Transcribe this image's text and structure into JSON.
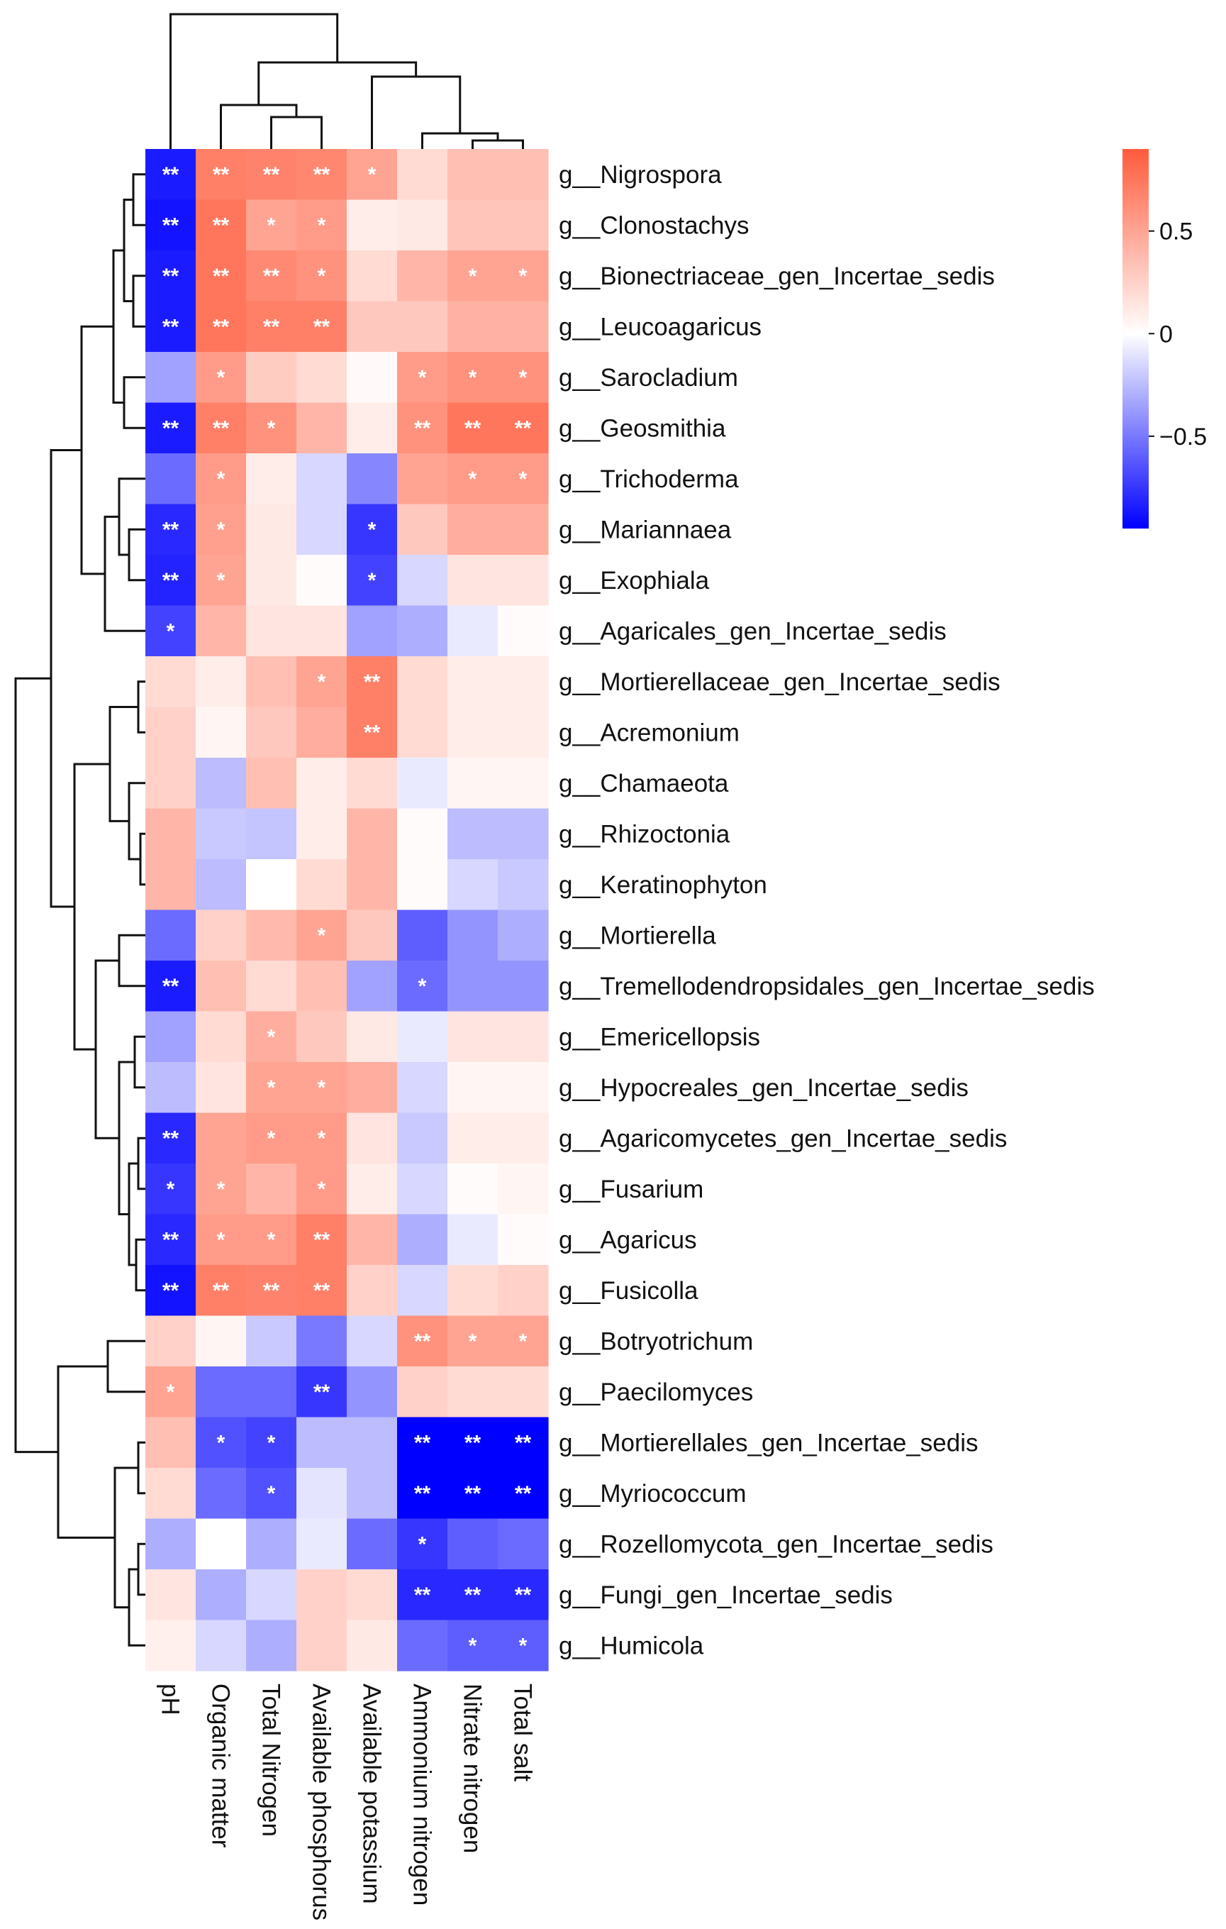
{
  "chart_data": {
    "type": "heatmap",
    "title": "",
    "columns": [
      "pH",
      "Organic matter",
      "Total Nitrogen",
      "Available phosphorus",
      "Available potassium",
      "Ammonium nitrogen",
      "Nitrate nitrogen",
      "Total salt"
    ],
    "rows": [
      "g__Nigrospora",
      "g__Clonostachys",
      "g__Bionectriaceae_gen_Incertae_sedis",
      "g__Leucoagaricus",
      "g__Sarocladium",
      "g__Geosmithia",
      "g__Trichoderma",
      "g__Mariannaea",
      "g__Exophiala",
      "g__Agaricales_gen_Incertae_sedis",
      "g__Mortierellaceae_gen_Incertae_sedis",
      "g__Acremonium",
      "g__Chamaeota",
      "g__Rhizoctonia",
      "g__Keratinophyton",
      "g__Mortierella",
      "g__Tremellodendropsidales_gen_Incertae_sedis",
      "g__Emericellopsis",
      "g__Hypocreales_gen_Incertae_sedis",
      "g__Agaricomycetes_gen_Incertae_sedis",
      "g__Fusarium",
      "g__Agaricus",
      "g__Fusicolla",
      "g__Botryotrichum",
      "g__Paecilomyces",
      "g__Mortierellales_gen_Incertae_sedis",
      "g__Myriococcum",
      "g__Rozellomycota_gen_Incertae_sedis",
      "g__Fungi_gen_Incertae_sedis",
      "g__Humicola"
    ],
    "values": [
      [
        -0.85,
        0.7,
        0.68,
        0.66,
        0.5,
        0.2,
        0.35,
        0.35
      ],
      [
        -0.88,
        0.75,
        0.5,
        0.55,
        0.1,
        0.12,
        0.32,
        0.32
      ],
      [
        -0.85,
        0.75,
        0.65,
        0.6,
        0.2,
        0.4,
        0.5,
        0.5
      ],
      [
        -0.85,
        0.75,
        0.7,
        0.7,
        0.3,
        0.3,
        0.42,
        0.42
      ],
      [
        -0.35,
        0.55,
        0.28,
        0.2,
        0.03,
        0.55,
        0.6,
        0.6
      ],
      [
        -0.85,
        0.7,
        0.6,
        0.4,
        0.1,
        0.6,
        0.75,
        0.75
      ],
      [
        -0.55,
        0.55,
        0.1,
        -0.15,
        -0.45,
        0.5,
        0.55,
        0.55
      ],
      [
        -0.8,
        0.52,
        0.12,
        -0.15,
        -0.75,
        0.3,
        0.45,
        0.45
      ],
      [
        -0.82,
        0.5,
        0.12,
        0.02,
        -0.7,
        -0.15,
        0.15,
        0.15
      ],
      [
        -0.7,
        0.4,
        0.15,
        0.15,
        -0.35,
        -0.3,
        -0.08,
        0.02
      ],
      [
        0.2,
        0.1,
        0.35,
        0.5,
        0.7,
        0.2,
        0.1,
        0.1
      ],
      [
        0.25,
        0.05,
        0.3,
        0.45,
        0.7,
        0.2,
        0.1,
        0.1
      ],
      [
        0.25,
        -0.25,
        0.35,
        0.1,
        0.2,
        -0.08,
        0.05,
        0.05
      ],
      [
        0.4,
        -0.2,
        -0.22,
        0.1,
        0.4,
        0.02,
        -0.25,
        -0.25
      ],
      [
        0.4,
        -0.25,
        0.0,
        0.2,
        0.4,
        0.02,
        -0.15,
        -0.2
      ],
      [
        -0.55,
        0.25,
        0.38,
        0.5,
        0.3,
        -0.6,
        -0.4,
        -0.3
      ],
      [
        -0.85,
        0.35,
        0.2,
        0.35,
        -0.35,
        -0.55,
        -0.4,
        -0.4
      ],
      [
        -0.35,
        0.2,
        0.45,
        0.3,
        0.12,
        -0.08,
        0.15,
        0.15
      ],
      [
        -0.25,
        0.15,
        0.5,
        0.5,
        0.45,
        -0.15,
        0.05,
        0.05
      ],
      [
        -0.8,
        0.5,
        0.55,
        0.55,
        0.15,
        -0.2,
        0.1,
        0.1
      ],
      [
        -0.75,
        0.5,
        0.4,
        0.55,
        0.1,
        -0.15,
        0.02,
        0.05
      ],
      [
        -0.8,
        0.55,
        0.55,
        0.7,
        0.4,
        -0.3,
        -0.08,
        0.02
      ],
      [
        -0.88,
        0.7,
        0.68,
        0.7,
        0.25,
        -0.15,
        0.2,
        0.25
      ],
      [
        0.25,
        0.05,
        -0.2,
        -0.5,
        -0.15,
        0.6,
        0.5,
        0.5
      ],
      [
        0.5,
        -0.55,
        -0.55,
        -0.75,
        -0.4,
        0.25,
        0.2,
        0.2
      ],
      [
        0.35,
        -0.65,
        -0.7,
        -0.25,
        -0.25,
        -0.95,
        -0.95,
        -0.95
      ],
      [
        0.2,
        -0.55,
        -0.65,
        -0.1,
        -0.25,
        -0.95,
        -0.95,
        -0.95
      ],
      [
        -0.3,
        0.0,
        -0.3,
        -0.08,
        -0.55,
        -0.75,
        -0.6,
        -0.55
      ],
      [
        0.15,
        -0.3,
        -0.15,
        0.25,
        0.2,
        -0.8,
        -0.8,
        -0.8
      ],
      [
        0.08,
        -0.15,
        -0.3,
        0.25,
        0.12,
        -0.55,
        -0.6,
        -0.6
      ]
    ],
    "significance": [
      [
        "**",
        "**",
        "**",
        "**",
        "*",
        "",
        "",
        ""
      ],
      [
        "**",
        "**",
        "*",
        "*",
        "",
        "",
        "",
        ""
      ],
      [
        "**",
        "**",
        "**",
        "*",
        "",
        "",
        "*",
        "*"
      ],
      [
        "**",
        "**",
        "**",
        "**",
        "",
        "",
        "",
        ""
      ],
      [
        "",
        "*",
        "",
        "",
        "",
        "*",
        "*",
        "*"
      ],
      [
        "**",
        "**",
        "*",
        "",
        "",
        "**",
        "**",
        "**"
      ],
      [
        "",
        "*",
        "",
        "",
        "",
        "",
        "*",
        "*"
      ],
      [
        "**",
        "*",
        "",
        "",
        "*",
        "",
        "",
        ""
      ],
      [
        "**",
        "*",
        "",
        "",
        "*",
        "",
        "",
        ""
      ],
      [
        "*",
        "",
        "",
        "",
        "",
        "",
        "",
        ""
      ],
      [
        "",
        "",
        "",
        "*",
        "**",
        "",
        "",
        ""
      ],
      [
        "",
        "",
        "",
        "",
        "**",
        "",
        "",
        ""
      ],
      [
        "",
        "",
        "",
        "",
        "",
        "",
        "",
        ""
      ],
      [
        "",
        "",
        "",
        "",
        "",
        "",
        "",
        ""
      ],
      [
        "",
        "",
        "",
        "",
        "",
        "",
        "",
        ""
      ],
      [
        "",
        "",
        "",
        "*",
        "",
        "",
        "",
        ""
      ],
      [
        "**",
        "",
        "",
        "",
        "",
        "*",
        "",
        ""
      ],
      [
        "",
        "",
        "*",
        "",
        "",
        "",
        "",
        ""
      ],
      [
        "",
        "",
        "*",
        "*",
        "",
        "",
        "",
        ""
      ],
      [
        "**",
        "",
        "*",
        "*",
        "",
        "",
        "",
        ""
      ],
      [
        "*",
        "*",
        "",
        "*",
        "",
        "",
        "",
        ""
      ],
      [
        "**",
        "*",
        "*",
        "**",
        "",
        "",
        "",
        ""
      ],
      [
        "**",
        "**",
        "**",
        "**",
        "",
        "",
        "",
        ""
      ],
      [
        "",
        "",
        "",
        "",
        "",
        "**",
        "*",
        "*"
      ],
      [
        "*",
        "",
        "",
        "**",
        "",
        "",
        "",
        ""
      ],
      [
        "",
        "*",
        "*",
        "",
        "",
        "**",
        "**",
        "**"
      ],
      [
        "",
        "",
        "*",
        "",
        "",
        "**",
        "**",
        "**"
      ],
      [
        "",
        "",
        "",
        "",
        "",
        "*",
        "",
        ""
      ],
      [
        "",
        "",
        "",
        "",
        "",
        "**",
        "**",
        "**"
      ],
      [
        "",
        "",
        "",
        "",
        "",
        "",
        "*",
        "*"
      ]
    ],
    "color_scale": {
      "min": -0.95,
      "max": 0.9,
      "low_color": "#0000FF",
      "mid_color": "#FFFFFF",
      "high_color": "#FF5B3C",
      "ticks": [
        0.5,
        0,
        -0.5
      ],
      "tick_labels": [
        "0.5",
        "0",
        "−0.5"
      ]
    },
    "legend_placement": "top-right",
    "dendrograms": [
      "rows-left",
      "columns-top"
    ]
  }
}
